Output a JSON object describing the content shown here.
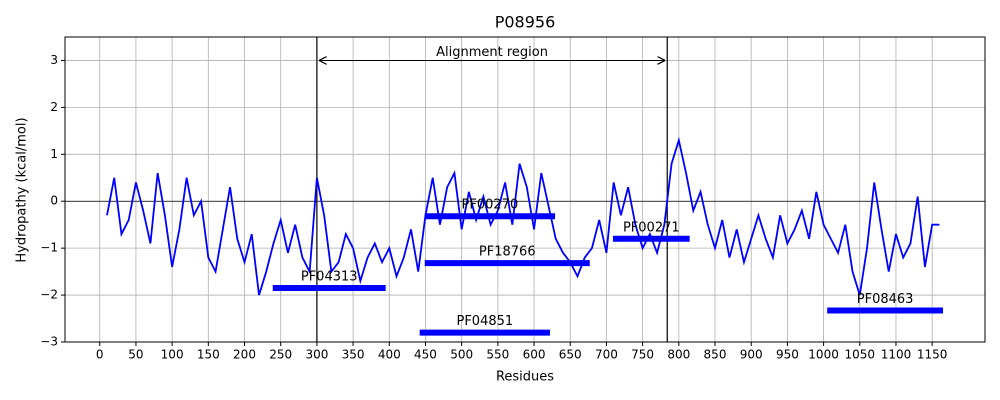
{
  "chart_data": {
    "type": "line",
    "title": "P08956",
    "xlabel": "Residues",
    "ylabel": "Hydropathy (kcal/mol)",
    "x": [
      10,
      20,
      30,
      40,
      50,
      60,
      70,
      80,
      90,
      100,
      110,
      120,
      130,
      140,
      150,
      160,
      170,
      180,
      190,
      200,
      210,
      220,
      230,
      240,
      250,
      260,
      270,
      280,
      290,
      300,
      310,
      320,
      330,
      340,
      350,
      360,
      370,
      380,
      390,
      400,
      410,
      420,
      430,
      440,
      450,
      460,
      470,
      480,
      490,
      500,
      510,
      520,
      530,
      540,
      550,
      560,
      570,
      580,
      590,
      600,
      610,
      620,
      630,
      640,
      650,
      660,
      670,
      680,
      690,
      700,
      710,
      720,
      730,
      740,
      750,
      760,
      770,
      780,
      790,
      800,
      810,
      820,
      830,
      840,
      850,
      860,
      870,
      880,
      890,
      900,
      910,
      920,
      930,
      940,
      950,
      960,
      970,
      980,
      990,
      1000,
      1010,
      1020,
      1030,
      1040,
      1050,
      1060,
      1070,
      1080,
      1090,
      1100,
      1110,
      1120,
      1130,
      1140,
      1150,
      1160
    ],
    "series": [
      {
        "color": "#0000ff",
        "values": [
          -0.3,
          0.5,
          -0.7,
          -0.4,
          0.4,
          -0.2,
          -0.9,
          0.6,
          -0.3,
          -1.4,
          -0.6,
          0.5,
          -0.3,
          0,
          -1.2,
          -1.5,
          -0.6,
          0.3,
          -0.8,
          -1.3,
          -0.7,
          -2.0,
          -1.5,
          -0.9,
          -0.4,
          -1.1,
          -0.5,
          -1.2,
          -1.5,
          0.5,
          -0.3,
          -1.5,
          -1.3,
          -0.7,
          -1.0,
          -1.7,
          -1.2,
          -0.9,
          -1.3,
          -1.0,
          -1.6,
          -1.2,
          -0.6,
          -1.5,
          -0.3,
          0.5,
          -0.5,
          0.3,
          0.6,
          -0.6,
          0.2,
          -0.4,
          0.1,
          -0.5,
          -0.2,
          0.4,
          -0.5,
          0.8,
          0.3,
          -0.6,
          0.6,
          -0.1,
          -0.8,
          -1.1,
          -1.3,
          -1.6,
          -1.2,
          -1.0,
          -0.4,
          -1.1,
          0.4,
          -0.3,
          0.3,
          -0.5,
          -1.0,
          -0.7,
          -1.1,
          -0.5,
          0.8,
          1.3,
          0.6,
          -0.2,
          0.2,
          -0.5,
          -1.0,
          -0.4,
          -1.2,
          -0.6,
          -1.3,
          -0.8,
          -0.3,
          -0.8,
          -1.2,
          -0.3,
          -0.9,
          -0.6,
          -0.2,
          -0.8,
          0.2,
          -0.5,
          -0.8,
          -1.1,
          -0.5,
          -1.5,
          -2.0,
          -1.0,
          0.4,
          -0.6,
          -1.5,
          -0.7,
          -1.2,
          -0.9,
          0.1,
          -1.4,
          -0.5,
          -0.5
        ]
      }
    ],
    "domains": [
      {
        "name": "PF04313",
        "start": 239,
        "end": 395,
        "y": -1.85
      },
      {
        "name": "PF00270",
        "start": 449,
        "end": 629,
        "y": -0.32
      },
      {
        "name": "PF18766",
        "start": 449,
        "end": 677,
        "y": -1.32
      },
      {
        "name": "PF00271",
        "start": 709,
        "end": 815,
        "y": -0.8
      },
      {
        "name": "PF04851",
        "start": 442,
        "end": 622,
        "y": -2.8
      },
      {
        "name": "PF08463",
        "start": 1005,
        "end": 1165,
        "y": -2.33
      }
    ],
    "domain_color": "#0000ff",
    "alignment": {
      "label": "Alignment region",
      "start": 300,
      "end": 784,
      "y": 3
    },
    "hline": 0,
    "grid": true,
    "xlim": [
      -48,
      1223
    ],
    "ylim": [
      -3,
      3.5
    ],
    "xticks": [
      0,
      50,
      100,
      150,
      200,
      250,
      300,
      350,
      400,
      450,
      500,
      550,
      600,
      650,
      700,
      750,
      800,
      850,
      900,
      950,
      1000,
      1050,
      1100,
      1150
    ],
    "yticks": [
      {
        "value": -3,
        "label": "−3"
      },
      {
        "value": -2,
        "label": "−2"
      },
      {
        "value": -1,
        "label": "−1"
      },
      0,
      1,
      2,
      3
    ]
  }
}
